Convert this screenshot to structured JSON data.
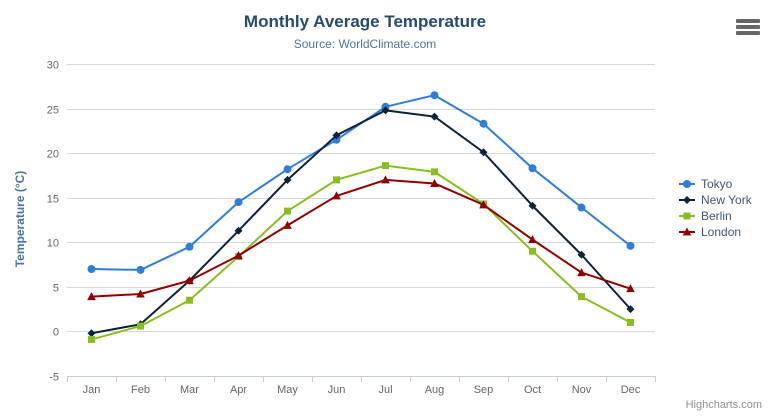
{
  "header": {
    "title": "Monthly Average Temperature",
    "subtitle": "Source: WorldClimate.com"
  },
  "export_menu": {
    "icon": "hamburger-icon"
  },
  "credits": {
    "label": "Highcharts.com"
  },
  "theme": {
    "title_color": "#274b6d",
    "subtitle_color": "#4d759e",
    "axis_label_color": "#666666",
    "y_axis_title_color": "#4572a7",
    "grid_color": "#d8d8d8",
    "axis_line_color": "#c0d0e0",
    "legend_text_color": "#3e576f",
    "credits_color": "#909090"
  },
  "chart_data": {
    "type": "line",
    "title": "Monthly Average Temperature",
    "subtitle": "Source: WorldClimate.com",
    "categories": [
      "Jan",
      "Feb",
      "Mar",
      "Apr",
      "May",
      "Jun",
      "Jul",
      "Aug",
      "Sep",
      "Oct",
      "Nov",
      "Dec"
    ],
    "series": [
      {
        "name": "Tokyo",
        "color": "#2f7ed8",
        "marker": "circle",
        "values": [
          7.0,
          6.9,
          9.5,
          14.5,
          18.2,
          21.5,
          25.2,
          26.5,
          23.3,
          18.3,
          13.9,
          9.6
        ]
      },
      {
        "name": "New York",
        "color": "#0d233a",
        "marker": "diamond",
        "values": [
          -0.2,
          0.8,
          5.7,
          11.3,
          17.0,
          22.0,
          24.8,
          24.1,
          20.1,
          14.1,
          8.6,
          2.5
        ]
      },
      {
        "name": "Berlin",
        "color": "#8bbc21",
        "marker": "square",
        "values": [
          -0.9,
          0.6,
          3.5,
          8.4,
          13.5,
          17.0,
          18.6,
          17.9,
          14.3,
          9.0,
          3.9,
          1.0
        ]
      },
      {
        "name": "London",
        "color": "#910000",
        "marker": "triangle",
        "values": [
          3.9,
          4.2,
          5.7,
          8.5,
          11.9,
          15.2,
          17.0,
          16.6,
          14.2,
          10.3,
          6.6,
          4.8
        ]
      }
    ],
    "xlabel": "",
    "ylabel": "Temperature (°C)",
    "ylim": [
      -5,
      30
    ],
    "tick_interval": 5,
    "grid": true,
    "legend_position": "right"
  }
}
